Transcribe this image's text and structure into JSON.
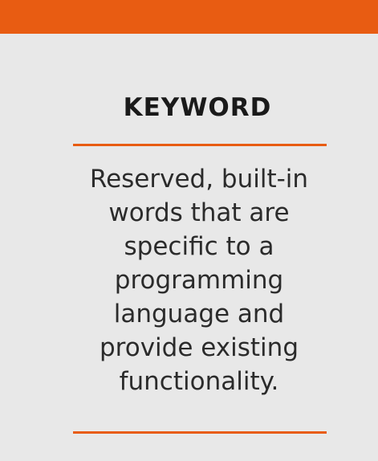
{
  "theme": {
    "accent": "#e85c12",
    "background": "#e8e8e8",
    "text": "#2b2b2b"
  },
  "card": {
    "title": "KEYWORD",
    "definition_lines": [
      "Reserved, built-in",
      "words that are",
      "specific to a",
      "programming",
      "language and",
      "provide existing",
      "functionality."
    ]
  }
}
